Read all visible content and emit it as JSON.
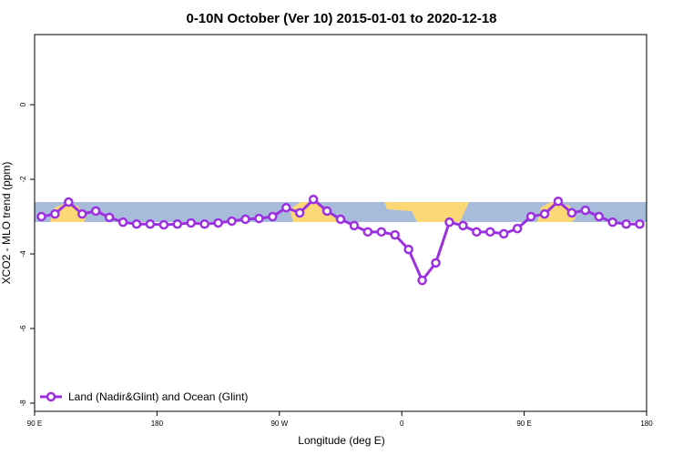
{
  "chart_data": {
    "type": "line",
    "title": "0-10N October (Ver 10)   2015-01-01 to 2020-12-18",
    "x_label": "Longitude (deg E)",
    "y_label": "XCO2 - MLO trend (ppm)",
    "x": [
      95,
      105,
      115,
      125,
      135,
      145,
      155,
      165,
      175,
      185,
      195,
      205,
      215,
      225,
      235,
      245,
      255,
      265,
      275,
      285,
      295,
      305,
      315,
      325,
      335,
      345,
      355,
      365,
      375,
      385,
      395,
      405,
      415,
      425,
      435,
      445,
      455,
      465,
      475,
      485,
      495,
      505,
      515,
      525,
      535
    ],
    "series": [
      {
        "name": "Land (Nadir&Glint) and Ocean (Glint)",
        "color": "#9b30e0",
        "values": [
          -3.0,
          -2.93,
          -2.61,
          -2.93,
          -2.85,
          -3.02,
          -3.15,
          -3.2,
          -3.2,
          -3.22,
          -3.2,
          -3.17,
          -3.2,
          -3.17,
          -3.12,
          -3.07,
          -3.05,
          -3.0,
          -2.76,
          -2.9,
          -2.54,
          -2.85,
          -3.07,
          -3.24,
          -3.41,
          -3.41,
          -3.49,
          -3.88,
          -4.71,
          -4.24,
          -3.15,
          -3.24,
          -3.41,
          -3.41,
          -3.46,
          -3.32,
          -3.0,
          -2.93,
          -2.59,
          -2.9,
          -2.83,
          -3.0,
          -3.15,
          -3.2,
          -3.2
        ]
      }
    ],
    "xlim": [
      90,
      540
    ],
    "xticks": [
      {
        "value": 90,
        "label": "90 E"
      },
      {
        "value": 180,
        "label": "180"
      },
      {
        "value": 270,
        "label": "90 W"
      },
      {
        "value": 360,
        "label": "0"
      },
      {
        "value": 450,
        "label": "90 E"
      },
      {
        "value": 540,
        "label": "180"
      }
    ],
    "ylim": [
      -8.22,
      1.88
    ],
    "yticks": [
      0,
      -2,
      -4,
      -6,
      -8
    ],
    "legend": "bottom-left"
  }
}
